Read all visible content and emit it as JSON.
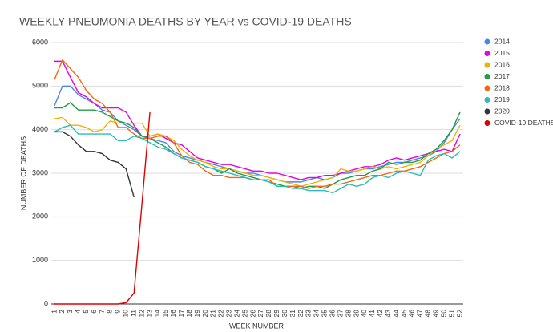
{
  "chart_data": {
    "type": "line",
    "title": "WEEKLY PNEUMONIA DEATHS BY YEAR vs COVID-19 DEATHS",
    "x_label": "WEEK NUMBER",
    "y_label": "NUMBER OF DEATHS",
    "categories": [
      "1",
      "2",
      "3",
      "4",
      "5",
      "6",
      "7",
      "8",
      "9",
      "10",
      "11",
      "12",
      "13",
      "14",
      "15",
      "16",
      "17",
      "18",
      "19",
      "20",
      "21",
      "22",
      "23",
      "24",
      "25",
      "26",
      "27",
      "28",
      "29",
      "30",
      "31",
      "32",
      "33",
      "34",
      "35",
      "36",
      "37",
      "38",
      "39",
      "40",
      "41",
      "42",
      "43",
      "44",
      "45",
      "46",
      "47",
      "48",
      "49",
      "50",
      "51",
      "52"
    ],
    "ylim": [
      0,
      6000
    ],
    "yticks": [
      0,
      1000,
      2000,
      3000,
      4000,
      5000,
      6000
    ],
    "grid": true,
    "legend": "right",
    "series": [
      {
        "name": "2014",
        "color": "#4a86e8",
        "values": [
          4550,
          5000,
          5000,
          4800,
          4700,
          4600,
          4450,
          4400,
          4200,
          4100,
          4000,
          3850,
          3800,
          3750,
          3700,
          3500,
          3400,
          3350,
          3300,
          3250,
          3200,
          3150,
          3100,
          3050,
          3000,
          3000,
          2950,
          2900,
          2850,
          2800,
          2800,
          2800,
          2850,
          2900,
          2850,
          2900,
          3000,
          3000,
          3050,
          3100,
          3100,
          3150,
          3200,
          3250,
          3250,
          3300,
          3350,
          3400,
          3500,
          3700,
          4000,
          4250
        ]
      },
      {
        "name": "2015",
        "color": "#e600e6",
        "values": [
          5570,
          5570,
          5200,
          4850,
          4750,
          4600,
          4500,
          4500,
          4500,
          4400,
          4100,
          3850,
          3850,
          3900,
          3800,
          3700,
          3650,
          3500,
          3350,
          3300,
          3250,
          3200,
          3200,
          3150,
          3100,
          3050,
          3050,
          3000,
          3000,
          2950,
          2900,
          2850,
          2900,
          2900,
          2950,
          2950,
          3000,
          3050,
          3100,
          3150,
          3150,
          3200,
          3300,
          3350,
          3300,
          3350,
          3400,
          3450,
          3500,
          3550,
          3500,
          3900
        ]
      },
      {
        "name": "2016",
        "color": "#f1b300",
        "values": [
          4250,
          4280,
          4100,
          4100,
          4050,
          3950,
          4000,
          4200,
          4150,
          4150,
          4150,
          4150,
          3850,
          3900,
          3850,
          3750,
          3550,
          3400,
          3300,
          3250,
          3150,
          3100,
          3100,
          3050,
          3000,
          2950,
          2950,
          2900,
          2850,
          2800,
          2750,
          2700,
          2750,
          2800,
          2850,
          2900,
          3100,
          3050,
          3050,
          3100,
          3150,
          3100,
          3150,
          3100,
          3150,
          3200,
          3250,
          3400,
          3550,
          3650,
          3750,
          4100
        ]
      },
      {
        "name": "2017",
        "color": "#239b45",
        "values": [
          4500,
          4500,
          4620,
          4450,
          4450,
          4450,
          4400,
          4300,
          4200,
          4150,
          4050,
          3850,
          3800,
          3700,
          3600,
          3450,
          3350,
          3300,
          3250,
          3150,
          3100,
          3000,
          3100,
          3000,
          2950,
          2900,
          2850,
          2800,
          2750,
          2700,
          2700,
          2650,
          2700,
          2700,
          2650,
          2750,
          2850,
          2900,
          2950,
          2950,
          3050,
          3100,
          3250,
          3200,
          3250,
          3250,
          3300,
          3450,
          3550,
          3750,
          4000,
          4400
        ]
      },
      {
        "name": "2018",
        "color": "#ee6a12",
        "values": [
          5150,
          5600,
          5400,
          5200,
          4900,
          4700,
          4600,
          4400,
          4050,
          4050,
          3900,
          3800,
          3800,
          3850,
          3850,
          3700,
          3400,
          3250,
          3200,
          3050,
          2950,
          2950,
          2900,
          2900,
          2900,
          2850,
          2850,
          2850,
          2700,
          2700,
          2700,
          2700,
          2650,
          2700,
          2700,
          2750,
          2750,
          2800,
          2850,
          2900,
          2950,
          2950,
          3000,
          3050,
          3050,
          3100,
          3150,
          3250,
          3350,
          3450,
          3500,
          3650
        ]
      },
      {
        "name": "2019",
        "color": "#2bbcbc",
        "values": [
          3950,
          4050,
          4100,
          3900,
          3900,
          3900,
          3900,
          3900,
          3750,
          3750,
          3850,
          3800,
          3700,
          3600,
          3550,
          3450,
          3350,
          3300,
          3250,
          3150,
          3100,
          3050,
          3000,
          2950,
          2900,
          2850,
          2850,
          2800,
          2700,
          2700,
          2650,
          2650,
          2600,
          2600,
          2600,
          2550,
          2650,
          2750,
          2700,
          2750,
          2900,
          2950,
          2900,
          3000,
          3050,
          3000,
          2950,
          3300,
          3400,
          3450,
          3350,
          3500
        ]
      },
      {
        "name": "2020",
        "color": "#333333",
        "values": [
          3950,
          3950,
          3850,
          3650,
          3500,
          3500,
          3450,
          3300,
          3250,
          3100,
          2450,
          null,
          null,
          null,
          null,
          null,
          null,
          null,
          null,
          null,
          null,
          null,
          null,
          null,
          null,
          null,
          null,
          null,
          null,
          null,
          null,
          null,
          null,
          null,
          null,
          null,
          null,
          null,
          null,
          null,
          null,
          null,
          null,
          null,
          null,
          null,
          null,
          null,
          null,
          null,
          null,
          null
        ]
      },
      {
        "name": "COVID-19 DEATHS",
        "color": "#e00000",
        "values": [
          0,
          0,
          0,
          0,
          0,
          0,
          0,
          0,
          0,
          30,
          250,
          2300,
          4400,
          null,
          null,
          null,
          null,
          null,
          null,
          null,
          null,
          null,
          null,
          null,
          null,
          null,
          null,
          null,
          null,
          null,
          null,
          null,
          null,
          null,
          null,
          null,
          null,
          null,
          null,
          null,
          null,
          null,
          null,
          null,
          null,
          null,
          null,
          null,
          null,
          null,
          null,
          null
        ]
      }
    ]
  }
}
